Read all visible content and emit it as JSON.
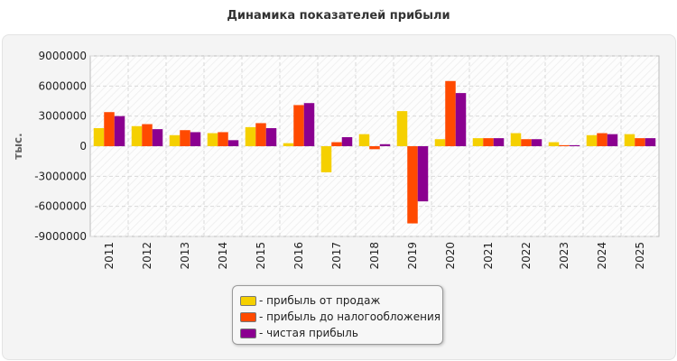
{
  "chart_data": {
    "type": "bar",
    "title": "Динамика показателей прибыли",
    "ylabel": "тыс.",
    "xlabel": "",
    "ylim": [
      -9000000,
      9000000
    ],
    "yticks": [
      "9000000",
      "6000000",
      "3000000",
      "0",
      "-3000000",
      "-6000000",
      "-9000000"
    ],
    "ytick_values": [
      9000000,
      6000000,
      3000000,
      0,
      -3000000,
      -6000000,
      -9000000
    ],
    "categories": [
      "2011",
      "2012",
      "2013",
      "2014",
      "2015",
      "2016",
      "2017",
      "2018",
      "2019",
      "2020",
      "2021",
      "2022",
      "2023",
      "2024",
      "2025"
    ],
    "grid": true,
    "legend_position": "bottom-center",
    "series": [
      {
        "name": "- прибыль от продаж",
        "color": "#f5d000",
        "values": [
          1800000,
          2000000,
          1100000,
          1300000,
          1900000,
          300000,
          -2600000,
          1200000,
          3500000,
          700000,
          800000,
          1300000,
          400000,
          1100000,
          1200000
        ]
      },
      {
        "name": "- прибыль до налогообложения",
        "color": "#ff4a00",
        "values": [
          3400000,
          2200000,
          1600000,
          1400000,
          2300000,
          4100000,
          400000,
          -300000,
          -7700000,
          6500000,
          800000,
          700000,
          100000,
          1300000,
          800000
        ]
      },
      {
        "name": "- чистая прибыль",
        "color": "#8b0090",
        "values": [
          3000000,
          1700000,
          1400000,
          600000,
          1800000,
          4300000,
          900000,
          200000,
          -5500000,
          5300000,
          800000,
          700000,
          100000,
          1200000,
          800000
        ]
      }
    ]
  }
}
